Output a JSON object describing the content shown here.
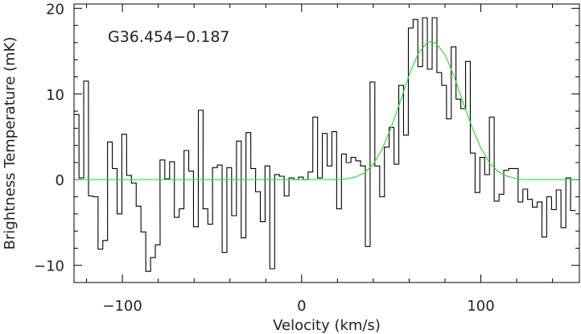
{
  "chart_data": {
    "type": "line",
    "title": "",
    "annotation": "G36.454−0.187",
    "xlabel": "Velocity (km/s)",
    "ylabel": "Brightness Temperature (mK)",
    "xlim": [
      -127,
      155
    ],
    "ylim": [
      -12,
      20.5
    ],
    "x_ticks": [
      -100,
      0,
      100
    ],
    "x_tick_labels": [
      "−100",
      "0",
      "100"
    ],
    "y_ticks": [
      -10,
      0,
      10,
      20
    ],
    "y_tick_labels": [
      "−10",
      "0",
      "10",
      "20"
    ],
    "grid": false,
    "series": [
      {
        "style": "step",
        "color": "#000000",
        "x": [
          -125.6,
          -122.9,
          -120.3,
          -117.6,
          -114.9,
          -112.3,
          -109.6,
          -107.0,
          -104.3,
          -101.6,
          -99.0,
          -96.3,
          -93.6,
          -91.0,
          -88.3,
          -85.6,
          -83.0,
          -80.3,
          -77.7,
          -75.0,
          -72.3,
          -69.7,
          -67.0,
          -64.3,
          -61.7,
          -59.0,
          -56.3,
          -53.7,
          -51.0,
          -48.4,
          -45.7,
          -43.0,
          -40.4,
          -37.7,
          -35.0,
          -32.4,
          -29.7,
          -27.0,
          -24.4,
          -21.7,
          -19.1,
          -16.4,
          -13.7,
          -11.1,
          -8.4,
          -5.7,
          -3.1,
          -0.4,
          2.3,
          4.9,
          7.6,
          10.2,
          12.9,
          15.6,
          18.2,
          20.9,
          23.6,
          26.2,
          28.9,
          31.6,
          34.2,
          36.9,
          39.5,
          42.2,
          44.9,
          47.5,
          50.2,
          52.9,
          55.5,
          58.2,
          60.9,
          63.5,
          66.2,
          68.8,
          71.5,
          74.2,
          76.8,
          79.5,
          82.2,
          84.8,
          87.5,
          90.2,
          92.8,
          95.5,
          98.1,
          100.8,
          103.5,
          106.1,
          108.8,
          111.5,
          114.1,
          116.8,
          119.5,
          122.1,
          124.8,
          127.4,
          130.1,
          132.8,
          135.4,
          138.1,
          140.8,
          143.4,
          146.1,
          148.8,
          151.4
        ],
        "values": [
          7.6,
          0.2,
          11.5,
          -1.9,
          -2.0,
          -8.1,
          -7.1,
          4.4,
          1.3,
          -4.0,
          5.3,
          0.5,
          -0.4,
          -3.1,
          -6.1,
          -10.7,
          -9.1,
          -7.6,
          2.3,
          0.1,
          2.1,
          -4.4,
          -3.4,
          3.4,
          1.0,
          -5.5,
          8.1,
          -3.4,
          -5.2,
          1.4,
          1.7,
          -8.5,
          1.4,
          -4.2,
          4.5,
          -6.8,
          5.5,
          1.3,
          -1.4,
          -4.9,
          1.6,
          -10.4,
          0.6,
          0.4,
          -1.9,
          0.2,
          0.0,
          0.3,
          0.0,
          0.9,
          7.3,
          0.2,
          5.4,
          1.6,
          5.6,
          -3.4,
          3.0,
          2.0,
          2.6,
          2.2,
          1.6,
          -7.8,
          11.4,
          1.6,
          -2.0,
          3.8,
          6.1,
          1.8,
          11.0,
          5.2,
          17.7,
          18.7,
          13.2,
          18.9,
          12.9,
          18.9,
          12.5,
          11.0,
          7.1,
          15.5,
          9.4,
          8.3,
          13.8,
          3.1,
          -1.5,
          2.6,
          0.6,
          7.3,
          -2.5,
          -1.7,
          1.1,
          1.3,
          1.3,
          -2.6,
          -1.1,
          -2.3,
          -3.2,
          -2.6,
          -6.7,
          -2.0,
          -3.5,
          -1.2,
          -5.6,
          0.2,
          -3.6
        ]
      },
      {
        "style": "line",
        "color": "#33dd33",
        "x": [
          -127,
          -100,
          -50,
          0,
          20,
          25,
          30,
          35,
          40,
          45,
          50,
          55,
          60,
          65,
          70,
          72,
          75,
          80,
          85,
          90,
          95,
          100,
          105,
          110,
          115,
          120,
          125,
          130,
          155
        ],
        "values": [
          0,
          0,
          0,
          0,
          0,
          0.1,
          0.3,
          0.8,
          1.8,
          3.6,
          6.1,
          9.1,
          12.2,
          14.7,
          16.0,
          16.1,
          15.9,
          14.6,
          12.1,
          9.1,
          6.2,
          3.7,
          1.9,
          0.9,
          0.4,
          0.1,
          0,
          0,
          0
        ]
      }
    ]
  }
}
